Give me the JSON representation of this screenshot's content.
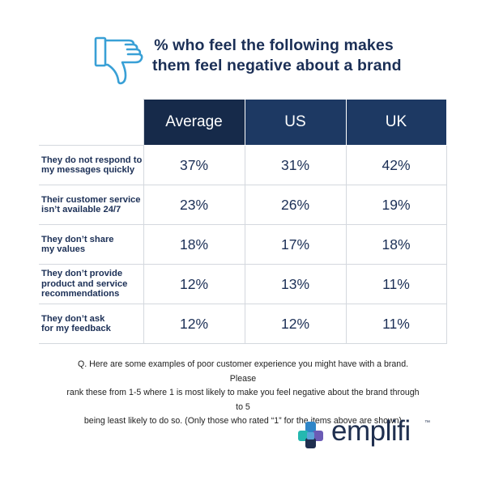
{
  "title_lines": [
    "% who feel the following makes",
    "them feel negative about a brand"
  ],
  "chart_data": {
    "type": "table",
    "title": "% who feel the following makes them feel negative about a brand",
    "columns": [
      "Average",
      "US",
      "UK"
    ],
    "rows": [
      {
        "label_lines": [
          "They do not respond to",
          "my messages quickly"
        ],
        "values": [
          "37%",
          "31%",
          "42%"
        ]
      },
      {
        "label_lines": [
          "Their customer service",
          "isn’t available 24/7"
        ],
        "values": [
          "23%",
          "26%",
          "19%"
        ]
      },
      {
        "label_lines": [
          "They don’t share",
          "my values"
        ],
        "values": [
          "18%",
          "17%",
          "18%"
        ]
      },
      {
        "label_lines": [
          "They don’t provide",
          "product and service",
          "recommendations"
        ],
        "values": [
          "12%",
          "13%",
          "11%"
        ]
      },
      {
        "label_lines": [
          "They don’t ask",
          "for my feedback"
        ],
        "values": [
          "12%",
          "12%",
          "11%"
        ]
      }
    ]
  },
  "footnote_lines": [
    "Q. Here are some examples of poor customer experience you might have with a brand. Please",
    "rank these from 1-5 where 1 is most likely to make you feel negative about the brand through to 5",
    "being least likely to do so. (Only those who rated “1” for the items above are shown)"
  ],
  "brand": {
    "name": "emplifi",
    "trademark": "™"
  },
  "colors": {
    "navy_dark": "#162a4a",
    "navy": "#1d3963",
    "text": "#1b2f56",
    "thumb": "#39a0d6",
    "logo_blue": "#2f86c8",
    "logo_teal": "#25b8b0",
    "logo_purple": "#6b5bb5",
    "logo_dark": "#1f2f4f"
  },
  "icons": {
    "header": "thumbs-down-icon",
    "logo": "emplifi-logo-mark"
  }
}
